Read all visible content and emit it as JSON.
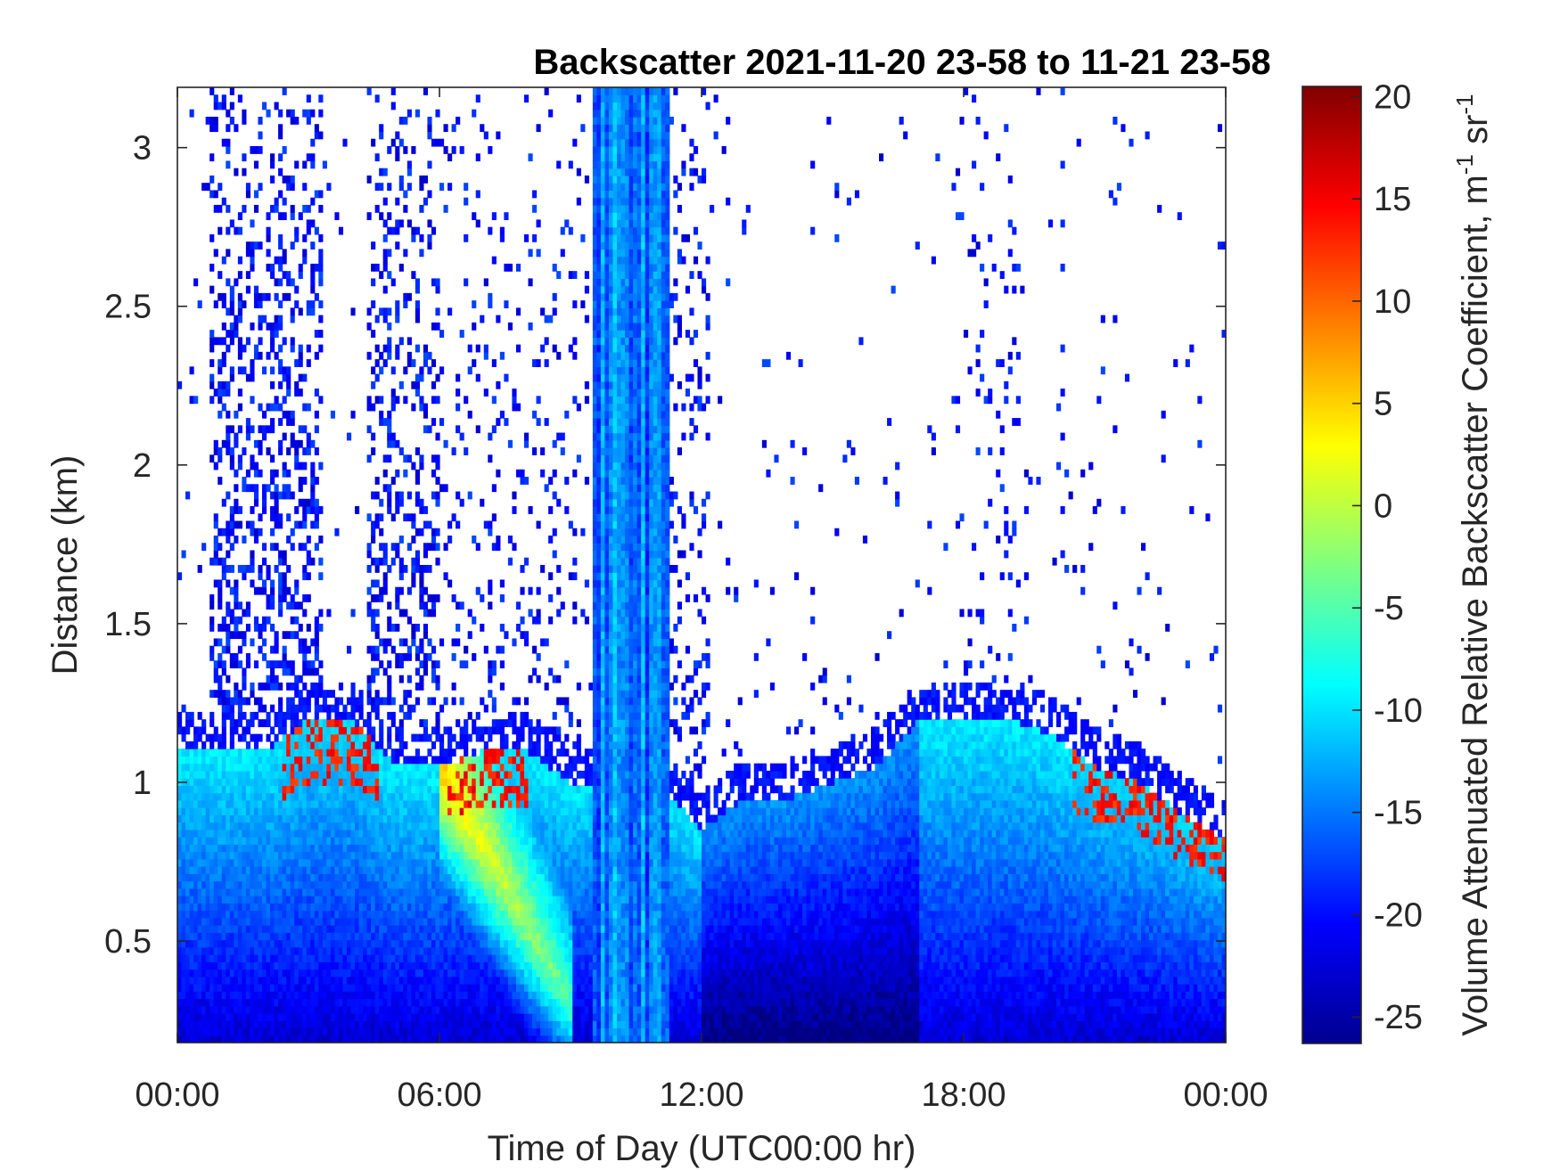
{
  "chart_data": {
    "type": "heatmap",
    "title": "Backscatter 2021-11-20 23-58 to 11-21 23-58",
    "xlabel": "Time of Day (UTC00:00 hr)",
    "ylabel": "Distance (km)",
    "x_ticks": [
      "00:00",
      "06:00",
      "12:00",
      "18:00",
      "00:00"
    ],
    "x_tick_hours": [
      0,
      6,
      12,
      18,
      24
    ],
    "xlim_hours": [
      0,
      24
    ],
    "y_ticks": [
      "0.5",
      "1",
      "1.5",
      "2",
      "2.5",
      "3"
    ],
    "y_tick_values": [
      0.5,
      1,
      1.5,
      2,
      2.5,
      3
    ],
    "ylim_km": [
      0.18,
      3.19
    ],
    "colorbar": {
      "label_main": "Volume Attenuated Relative Backscatter Coefficient, m",
      "label_sup1": "-1",
      "label_mid": " sr",
      "label_sup2": "-1",
      "ticks": [
        "20",
        "15",
        "10",
        "5",
        "0",
        "-5",
        "-10",
        "-15",
        "-20",
        "-25"
      ],
      "tick_values": [
        20,
        15,
        10,
        5,
        0,
        -5,
        -10,
        -15,
        -20,
        -25
      ],
      "range": [
        -26.3,
        20.5
      ],
      "colormap": "jet"
    },
    "features": {
      "boundary_layer_top_km": [
        [
          0,
          1.1
        ],
        [
          1,
          1.1
        ],
        [
          2,
          1.1
        ],
        [
          3,
          1.2
        ],
        [
          4,
          1.2
        ],
        [
          5,
          1.05
        ],
        [
          6,
          1.05
        ],
        [
          7,
          1.1
        ],
        [
          8,
          1.1
        ],
        [
          9,
          1.0
        ],
        [
          10,
          1.0
        ],
        [
          11,
          1.0
        ],
        [
          12,
          0.85
        ],
        [
          13,
          0.95
        ],
        [
          14,
          0.95
        ],
        [
          15,
          1.0
        ],
        [
          16,
          1.05
        ],
        [
          17,
          1.2
        ],
        [
          18,
          1.2
        ],
        [
          19,
          1.2
        ],
        [
          20,
          1.15
        ],
        [
          21,
          1.05
        ],
        [
          22,
          1.0
        ],
        [
          23,
          0.9
        ],
        [
          24,
          0.82
        ]
      ],
      "dense_column_hours": [
        9.5,
        11.3
      ],
      "aerosol_plume_hours": [
        6.0,
        9.0
      ]
    }
  }
}
